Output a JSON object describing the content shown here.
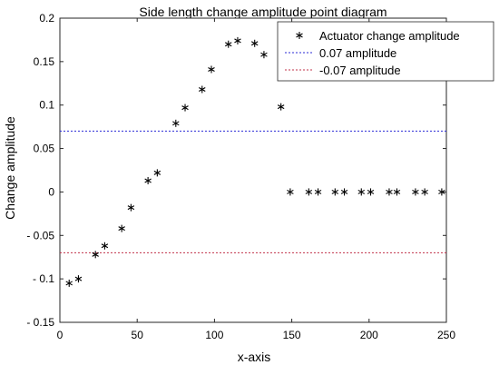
{
  "chart_data": {
    "type": "scatter",
    "title": "Side length change amplitude point diagram",
    "xlabel": "x-axis",
    "ylabel": "Change amplitude",
    "xlim": [
      0,
      250
    ],
    "ylim": [
      -0.15,
      0.2
    ],
    "x_ticks": [
      "0",
      "50",
      "100",
      "150",
      "200",
      "250"
    ],
    "y_ticks": [
      "- 0.15",
      "- 0.1",
      "- 0.05",
      "0",
      "0.05",
      "0.1",
      "0.15",
      "0.2"
    ],
    "grid": false,
    "legend_position": "top-right",
    "series": [
      {
        "name": "Actuator change amplitude",
        "marker": "*",
        "color": "#000000",
        "points": [
          [
            6,
            -0.105
          ],
          [
            12,
            -0.1
          ],
          [
            23,
            -0.072
          ],
          [
            29,
            -0.062
          ],
          [
            40,
            -0.042
          ],
          [
            46,
            -0.018
          ],
          [
            57,
            0.013
          ],
          [
            63,
            0.022
          ],
          [
            75,
            0.079
          ],
          [
            81,
            0.097
          ],
          [
            92,
            0.118
          ],
          [
            98,
            0.141
          ],
          [
            109,
            0.17
          ],
          [
            115,
            0.174
          ],
          [
            126,
            0.171
          ],
          [
            132,
            0.158
          ],
          [
            143,
            0.098
          ],
          [
            149,
            0.0
          ],
          [
            161,
            0.0
          ],
          [
            167,
            0.0
          ],
          [
            178,
            0.0
          ],
          [
            184,
            0.0
          ],
          [
            195,
            0.0
          ],
          [
            201,
            0.0
          ],
          [
            213,
            0.0
          ],
          [
            218,
            0.0
          ],
          [
            230,
            0.0
          ],
          [
            236,
            0.0
          ],
          [
            247,
            0.0
          ],
          [
            253,
            0.0
          ]
        ]
      }
    ],
    "reference_lines": [
      {
        "name": "0.07 amplitude",
        "y": 0.07,
        "color": "#2b2bd6",
        "style": "dotted"
      },
      {
        "name": "-0.07 amplitude",
        "y": -0.07,
        "color": "#c0304a",
        "style": "dotted"
      }
    ]
  }
}
